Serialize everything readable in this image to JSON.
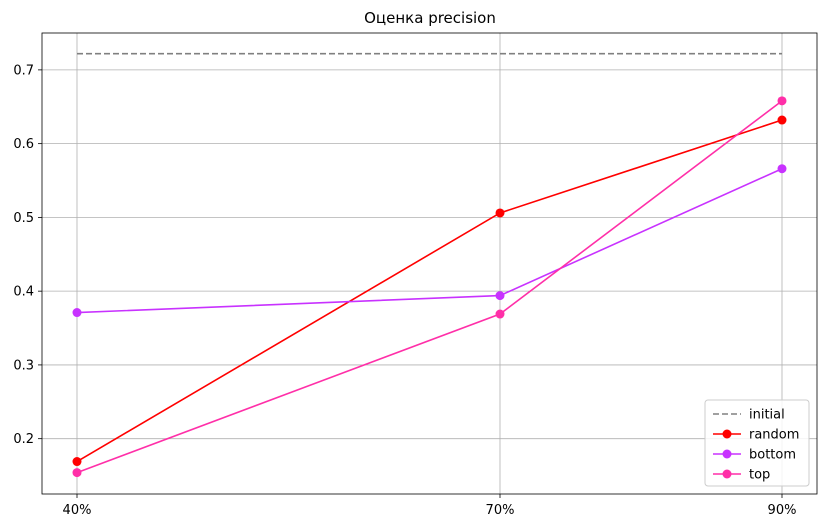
{
  "chart_data": {
    "type": "line",
    "title": "Оценка precision",
    "xlabel": "",
    "ylabel": "",
    "categories": [
      "40%",
      "70%",
      "90%"
    ],
    "ylim": [
      0.125,
      0.75
    ],
    "yticks": [
      0.2,
      0.3,
      0.4,
      0.5,
      0.6,
      0.7
    ],
    "ytick_labels": [
      "0.2",
      "0.3",
      "0.4",
      "0.5",
      "0.6",
      "0.7"
    ],
    "grid": true,
    "legend_position": "bottom-right",
    "series": [
      {
        "name": "initial",
        "values": [
          0.722,
          0.722,
          0.722
        ],
        "color": "#808080",
        "style": "dashed",
        "marker": "none"
      },
      {
        "name": "random",
        "values": [
          0.169,
          0.506,
          0.632
        ],
        "color": "#ff0000",
        "style": "solid",
        "marker": "circle"
      },
      {
        "name": "bottom",
        "values": [
          0.371,
          0.394,
          0.566
        ],
        "color": "#c832ff",
        "style": "solid",
        "marker": "circle"
      },
      {
        "name": "top",
        "values": [
          0.154,
          0.369,
          0.658
        ],
        "color": "#ff2fa8",
        "style": "solid",
        "marker": "circle"
      }
    ]
  }
}
